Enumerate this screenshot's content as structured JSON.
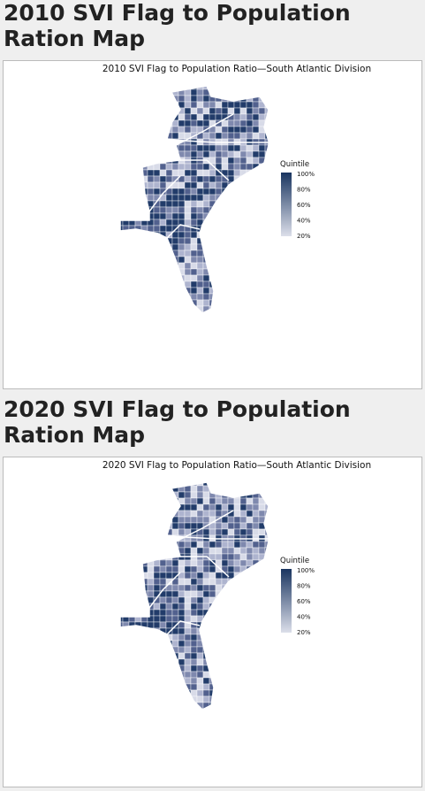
{
  "sections": [
    {
      "heading": "2010 SVI Flag to Population Ration Map",
      "map": {
        "title": "2010 SVI Flag to Population Ratio—South Atlantic Division",
        "legend": {
          "title": "Quintile",
          "labels": [
            "100%",
            "80%",
            "60%",
            "40%",
            "20%"
          ]
        }
      }
    },
    {
      "heading": "2020 SVI Flag to Population Ration Map",
      "map": {
        "title": "2020 SVI Flag to Population Ratio—South Atlantic Division",
        "legend": {
          "title": "Quintile",
          "labels": [
            "100%",
            "80%",
            "60%",
            "40%",
            "20%"
          ]
        }
      }
    }
  ]
}
